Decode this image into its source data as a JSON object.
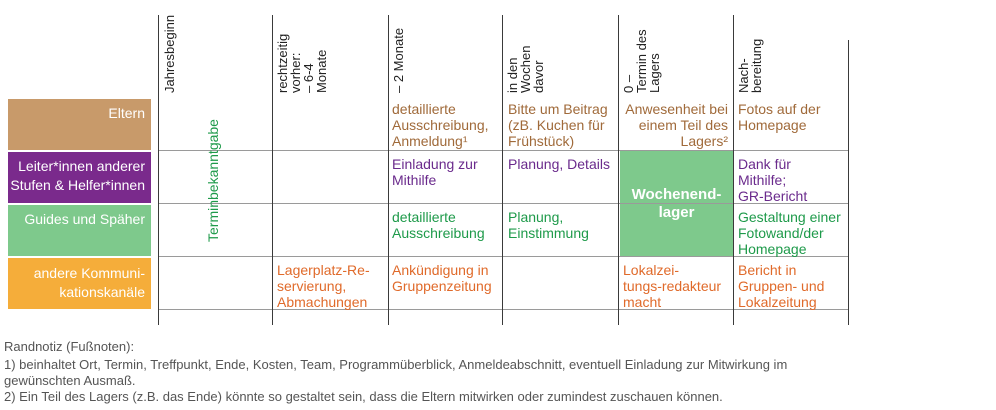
{
  "colors": {
    "eltern": "#c89a6a",
    "leiter": "#7a2a8c",
    "guides": "#7ec98c",
    "andere": "#f5ad3a",
    "lager": "#7ec98c"
  },
  "headers": [
    "Jahresbeginn",
    "rechtzeitig\nvorher:\n– 6-4\nMonate",
    "– 2 Monate",
    "in den\nWochen\ndavor",
    "0 –\nTermin des\nLagers",
    "Nach-\nbereitung"
  ],
  "rows": {
    "eltern": "Eltern",
    "leiter": "Leiter*innen anderer\nStufen & Helfer*innen",
    "guides": "Guides und Späher",
    "andere": "andere Kommuni-\nkationskanäle"
  },
  "terminbekanntgabe": "Terminbekanntgabe",
  "cells": {
    "eltern_2m": "detaillierte\nAusschreibung,\nAnmeldung¹",
    "eltern_wochen": "Bitte um Beitrag\n(zB. Kuchen für\nFrühstück)",
    "eltern_termin": "Anwesenheit bei\neinem Teil des\nLagers²",
    "eltern_nach": "Fotos auf der\nHomepage",
    "leiter_2m": "Einladung zur\nMithilfe",
    "leiter_wochen": "Planung, Details",
    "leiter_nach": "Dank für\nMithilfe;\nGR-Bericht",
    "lager": "Wochenend-\nlager",
    "guides_2m": "detaillierte\nAusschreibung",
    "guides_wochen": "Planung,\nEinstimmung",
    "guides_nach": "Gestaltung einer\nFotowand/der\nHomepage",
    "andere_46": "Lagerplatz-Re-\nservierung,\nAbmachungen",
    "andere_2m": "Ankündigung in\nGruppenzeitung",
    "andere_termin": "Lokalzei-\ntungs-redakteur\nmacht",
    "andere_nach": "Bericht in\nGruppen- und\nLokalzeitung"
  },
  "notes": {
    "title": "Randnotiz (Fußnoten):",
    "line1": "1) beinhaltet Ort, Termin, Treffpunkt, Ende, Kosten, Team, Programmüberblick, Anmeldeabschnitt, eventuell Einladung zur Mitwirkung im",
    "line2": "gewünschten Ausmaß.",
    "line3": "2) Ein Teil des Lagers (z.B. das Ende) könnte so gestaltet sein, dass die Eltern mitwirken oder zumindest zuschauen können."
  }
}
